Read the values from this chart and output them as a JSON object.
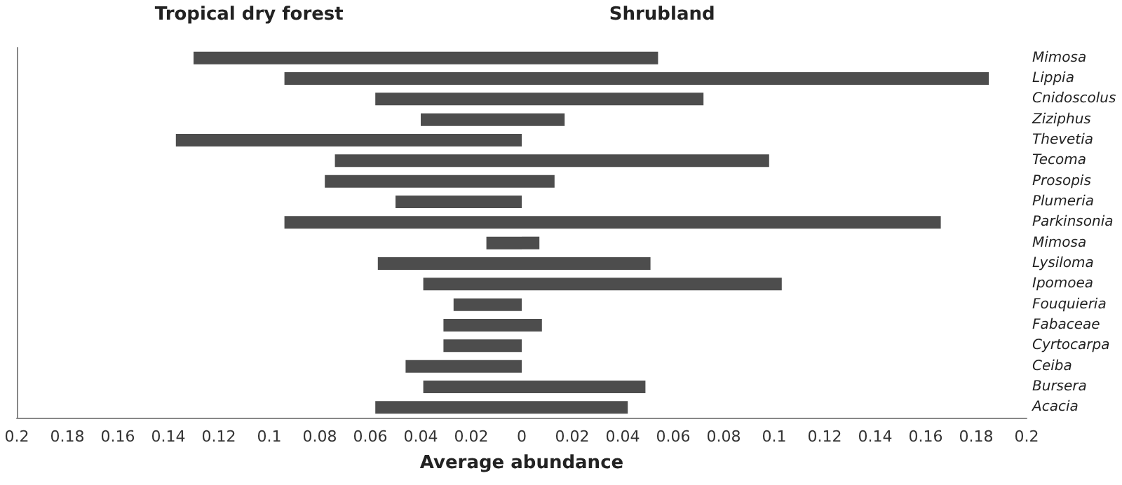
{
  "chart_data": {
    "type": "bar",
    "orientation": "horizontal",
    "stacked": true,
    "xlabel": "Average abundance",
    "categories": [
      "Mimosa",
      "Lippia",
      "Cnidoscolus",
      "Ziziphus",
      "Thevetia",
      "Tecoma",
      "Prosopis",
      "Plumeria",
      "Parkinsonia",
      "Mimosa",
      "Lysiloma",
      "Ipomoea",
      "Fouquieria",
      "Fabaceae",
      "Cyrtocarpa",
      "Ceiba",
      "Bursera",
      "Acacia"
    ],
    "series": [
      {
        "name": "Tropical dry forest",
        "color": "#4d4d4d",
        "values": [
          -0.13,
          -0.094,
          -0.058,
          -0.04,
          -0.137,
          -0.074,
          -0.078,
          -0.05,
          -0.094,
          -0.014,
          -0.057,
          -0.039,
          -0.027,
          -0.031,
          -0.031,
          -0.046,
          -0.039,
          -0.058
        ]
      },
      {
        "name": "Shrubland",
        "color": "#4d4d4d",
        "values": [
          0.054,
          0.185,
          0.072,
          0.017,
          0,
          0.098,
          0.013,
          0,
          0.166,
          0.007,
          0.051,
          0.103,
          0,
          0.008,
          0,
          0,
          0.049,
          0.042
        ]
      }
    ],
    "xlim": [
      -0.2,
      0.2
    ],
    "xticks": [
      {
        "value": -0.2,
        "label": "0.2"
      },
      {
        "value": -0.18,
        "label": "0.18"
      },
      {
        "value": -0.16,
        "label": "0.16"
      },
      {
        "value": -0.14,
        "label": "0.14"
      },
      {
        "value": -0.12,
        "label": "0.12"
      },
      {
        "value": -0.1,
        "label": "0.1"
      },
      {
        "value": -0.08,
        "label": "0.08"
      },
      {
        "value": -0.06,
        "label": "0.06"
      },
      {
        "value": -0.04,
        "label": "0.04"
      },
      {
        "value": -0.02,
        "label": "0.02"
      },
      0,
      0.02,
      0.04,
      0.06,
      0.08,
      0.1,
      0.12,
      0.14,
      0.16,
      0.18,
      0.2
    ],
    "grid": false,
    "legend": false
  }
}
